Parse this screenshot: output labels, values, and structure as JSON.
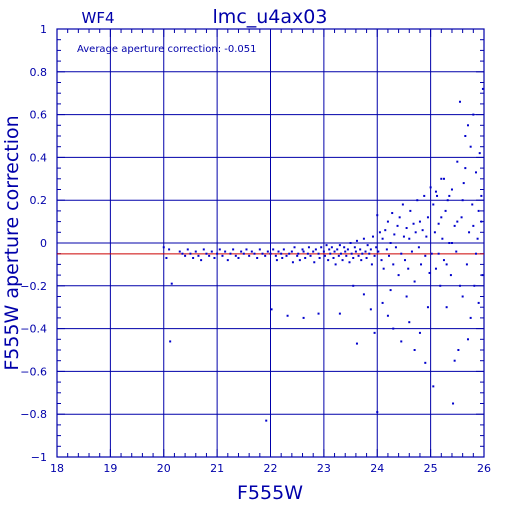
{
  "chart_data": {
    "type": "scatter",
    "title": "lmc_u4ax03",
    "chip_label": "WF4",
    "annotation": "Average aperture correction: -0.051",
    "xlabel": "F555W",
    "ylabel": "F555W aperture correction",
    "xlim": [
      18,
      26
    ],
    "ylim": [
      -1,
      1
    ],
    "x_ticks": [
      "18",
      "19",
      "20",
      "21",
      "22",
      "23",
      "24",
      "25",
      "26"
    ],
    "y_ticks": [
      "1",
      "0.8",
      "0.6",
      "0.4",
      "0.2",
      "0",
      "−0.2",
      "−0.4",
      "−0.6",
      "−0.8",
      "−1"
    ],
    "grid": true,
    "reference_lines": [
      {
        "name": "zero",
        "y": 0.0
      },
      {
        "name": "average",
        "y": -0.051
      }
    ],
    "colors": {
      "axes": "#0000aa",
      "points": "#0000cc",
      "average_line": "#cc0000"
    },
    "points": [
      [
        20.0,
        -0.02
      ],
      [
        20.05,
        -0.07
      ],
      [
        20.1,
        -0.03
      ],
      [
        20.15,
        -0.19
      ],
      [
        20.12,
        -0.46
      ],
      [
        20.3,
        -0.04
      ],
      [
        20.35,
        -0.05
      ],
      [
        20.4,
        -0.06
      ],
      [
        20.45,
        -0.03
      ],
      [
        20.5,
        -0.05
      ],
      [
        20.55,
        -0.07
      ],
      [
        20.6,
        -0.04
      ],
      [
        20.65,
        -0.06
      ],
      [
        20.7,
        -0.08
      ],
      [
        20.75,
        -0.03
      ],
      [
        20.8,
        -0.05
      ],
      [
        20.85,
        -0.06
      ],
      [
        20.9,
        -0.04
      ],
      [
        20.95,
        -0.07
      ],
      [
        21.0,
        -0.05
      ],
      [
        21.05,
        -0.03
      ],
      [
        21.1,
        -0.06
      ],
      [
        21.15,
        -0.04
      ],
      [
        21.2,
        -0.08
      ],
      [
        21.25,
        -0.05
      ],
      [
        21.3,
        -0.03
      ],
      [
        21.35,
        -0.06
      ],
      [
        21.4,
        -0.07
      ],
      [
        21.45,
        -0.04
      ],
      [
        21.5,
        -0.05
      ],
      [
        21.55,
        -0.03
      ],
      [
        21.6,
        -0.06
      ],
      [
        21.65,
        -0.04
      ],
      [
        21.7,
        -0.05
      ],
      [
        21.75,
        -0.07
      ],
      [
        21.8,
        -0.03
      ],
      [
        21.85,
        -0.05
      ],
      [
        21.9,
        -0.06
      ],
      [
        21.95,
        -0.04
      ],
      [
        22.0,
        -0.05
      ],
      [
        21.92,
        -0.83
      ],
      [
        22.02,
        -0.31
      ],
      [
        22.05,
        -0.03
      ],
      [
        22.1,
        -0.06
      ],
      [
        22.12,
        -0.08
      ],
      [
        22.15,
        -0.04
      ],
      [
        22.2,
        -0.05
      ],
      [
        22.22,
        -0.07
      ],
      [
        22.25,
        -0.03
      ],
      [
        22.3,
        -0.06
      ],
      [
        22.32,
        -0.34
      ],
      [
        22.35,
        -0.05
      ],
      [
        22.4,
        -0.04
      ],
      [
        22.42,
        -0.09
      ],
      [
        22.45,
        -0.02
      ],
      [
        22.5,
        -0.06
      ],
      [
        22.52,
        -0.05
      ],
      [
        22.55,
        -0.08
      ],
      [
        22.6,
        -0.03
      ],
      [
        22.62,
        -0.04
      ],
      [
        22.65,
        -0.07
      ],
      [
        22.7,
        -0.05
      ],
      [
        22.72,
        -0.02
      ],
      [
        22.75,
        -0.06
      ],
      [
        22.8,
        -0.04
      ],
      [
        22.82,
        -0.09
      ],
      [
        22.85,
        -0.03
      ],
      [
        22.9,
        -0.05
      ],
      [
        22.92,
        -0.07
      ],
      [
        22.95,
        -0.02
      ],
      [
        22.62,
        -0.35
      ],
      [
        22.9,
        -0.33
      ],
      [
        23.0,
        -0.04
      ],
      [
        23.02,
        -0.06
      ],
      [
        23.05,
        -0.01
      ],
      [
        23.08,
        -0.08
      ],
      [
        23.1,
        -0.03
      ],
      [
        23.12,
        -0.05
      ],
      [
        23.15,
        -0.02
      ],
      [
        23.18,
        -0.07
      ],
      [
        23.2,
        -0.04
      ],
      [
        23.22,
        -0.1
      ],
      [
        23.25,
        -0.03
      ],
      [
        23.28,
        -0.06
      ],
      [
        23.3,
        -0.01
      ],
      [
        23.32,
        -0.05
      ],
      [
        23.35,
        -0.08
      ],
      [
        23.38,
        -0.02
      ],
      [
        23.4,
        -0.04
      ],
      [
        23.42,
        -0.06
      ],
      [
        23.45,
        -0.03
      ],
      [
        23.48,
        -0.09
      ],
      [
        23.5,
        0.0
      ],
      [
        23.52,
        -0.05
      ],
      [
        23.55,
        -0.07
      ],
      [
        23.58,
        -0.02
      ],
      [
        23.6,
        -0.04
      ],
      [
        23.62,
        0.01
      ],
      [
        23.65,
        -0.06
      ],
      [
        23.68,
        -0.03
      ],
      [
        23.7,
        -0.08
      ],
      [
        23.72,
        -0.05
      ],
      [
        23.75,
        0.02
      ],
      [
        23.78,
        -0.04
      ],
      [
        23.8,
        -0.07
      ],
      [
        23.82,
        -0.01
      ],
      [
        23.85,
        -0.05
      ],
      [
        23.88,
        -0.03
      ],
      [
        23.9,
        -0.1
      ],
      [
        23.92,
        0.03
      ],
      [
        23.95,
        -0.06
      ],
      [
        23.98,
        -0.02
      ],
      [
        23.3,
        -0.33
      ],
      [
        23.55,
        -0.2
      ],
      [
        23.62,
        -0.47
      ],
      [
        23.75,
        -0.24
      ],
      [
        23.88,
        -0.31
      ],
      [
        23.95,
        -0.42
      ],
      [
        24.0,
        -0.79
      ],
      [
        24.0,
        0.13
      ],
      [
        24.02,
        -0.04
      ],
      [
        24.05,
        0.05
      ],
      [
        24.08,
        -0.08
      ],
      [
        24.1,
        0.02
      ],
      [
        24.12,
        -0.12
      ],
      [
        24.15,
        0.06
      ],
      [
        24.18,
        -0.03
      ],
      [
        24.2,
        0.1
      ],
      [
        24.22,
        -0.06
      ],
      [
        24.25,
        0.0
      ],
      [
        24.28,
        0.14
      ],
      [
        24.3,
        -0.1
      ],
      [
        24.32,
        0.04
      ],
      [
        24.35,
        -0.02
      ],
      [
        24.38,
        0.08
      ],
      [
        24.4,
        -0.15
      ],
      [
        24.42,
        0.12
      ],
      [
        24.45,
        -0.05
      ],
      [
        24.48,
        0.18
      ],
      [
        24.5,
        0.03
      ],
      [
        24.52,
        -0.08
      ],
      [
        24.55,
        0.07
      ],
      [
        24.58,
        -0.12
      ],
      [
        24.6,
        0.02
      ],
      [
        24.62,
        0.15
      ],
      [
        24.65,
        -0.04
      ],
      [
        24.68,
        0.09
      ],
      [
        24.7,
        -0.18
      ],
      [
        24.72,
        0.05
      ],
      [
        24.75,
        0.2
      ],
      [
        24.78,
        -0.02
      ],
      [
        24.8,
        0.1
      ],
      [
        24.82,
        -0.1
      ],
      [
        24.85,
        0.06
      ],
      [
        24.88,
        0.22
      ],
      [
        24.9,
        -0.06
      ],
      [
        24.92,
        0.03
      ],
      [
        24.95,
        0.12
      ],
      [
        24.98,
        -0.14
      ],
      [
        24.1,
        -0.28
      ],
      [
        24.2,
        -0.34
      ],
      [
        24.3,
        -0.4
      ],
      [
        24.45,
        -0.46
      ],
      [
        24.6,
        -0.37
      ],
      [
        24.7,
        -0.5
      ],
      [
        24.8,
        -0.42
      ],
      [
        24.9,
        -0.56
      ],
      [
        24.95,
        -0.3
      ],
      [
        24.25,
        -0.22
      ],
      [
        24.55,
        -0.25
      ],
      [
        25.0,
        0.26
      ],
      [
        25.02,
        -0.05
      ],
      [
        25.05,
        0.18
      ],
      [
        25.05,
        -0.67
      ],
      [
        25.08,
        0.05
      ],
      [
        25.1,
        -0.12
      ],
      [
        25.12,
        0.22
      ],
      [
        25.15,
        0.09
      ],
      [
        25.18,
        -0.2
      ],
      [
        25.2,
        0.3
      ],
      [
        25.22,
        0.02
      ],
      [
        25.25,
        -0.08
      ],
      [
        25.28,
        0.15
      ],
      [
        25.3,
        -0.3
      ],
      [
        25.32,
        0.2
      ],
      [
        25.35,
        0.0
      ],
      [
        25.38,
        -0.15
      ],
      [
        25.4,
        0.25
      ],
      [
        25.42,
        -0.75
      ],
      [
        25.45,
        0.08
      ],
      [
        25.48,
        -0.04
      ],
      [
        25.5,
        0.38
      ],
      [
        25.52,
        -0.5
      ],
      [
        25.55,
        0.66
      ],
      [
        25.58,
        0.12
      ],
      [
        25.6,
        -0.25
      ],
      [
        25.62,
        0.28
      ],
      [
        25.65,
        0.5
      ],
      [
        25.68,
        -0.1
      ],
      [
        25.7,
        0.55
      ],
      [
        25.72,
        0.05
      ],
      [
        25.75,
        -0.35
      ],
      [
        25.78,
        0.18
      ],
      [
        25.8,
        0.6
      ],
      [
        25.82,
        -0.2
      ],
      [
        25.85,
        0.33
      ],
      [
        25.88,
        0.02
      ],
      [
        25.9,
        -0.28
      ],
      [
        25.92,
        0.42
      ],
      [
        25.95,
        0.1
      ],
      [
        25.97,
        -0.15
      ],
      [
        25.98,
        0.72
      ],
      [
        25.95,
        0.22
      ],
      [
        25.9,
        0.15
      ],
      [
        25.85,
        -0.05
      ],
      [
        25.8,
        0.08
      ],
      [
        25.75,
        0.45
      ],
      [
        25.7,
        -0.45
      ],
      [
        25.65,
        0.35
      ],
      [
        25.6,
        0.2
      ],
      [
        25.55,
        -0.2
      ],
      [
        25.5,
        0.1
      ],
      [
        25.45,
        -0.55
      ],
      [
        25.4,
        0.0
      ],
      [
        25.35,
        0.22
      ],
      [
        25.3,
        -0.1
      ],
      [
        25.25,
        0.3
      ],
      [
        25.2,
        0.12
      ],
      [
        25.15,
        -0.05
      ],
      [
        25.1,
        0.24
      ]
    ]
  }
}
